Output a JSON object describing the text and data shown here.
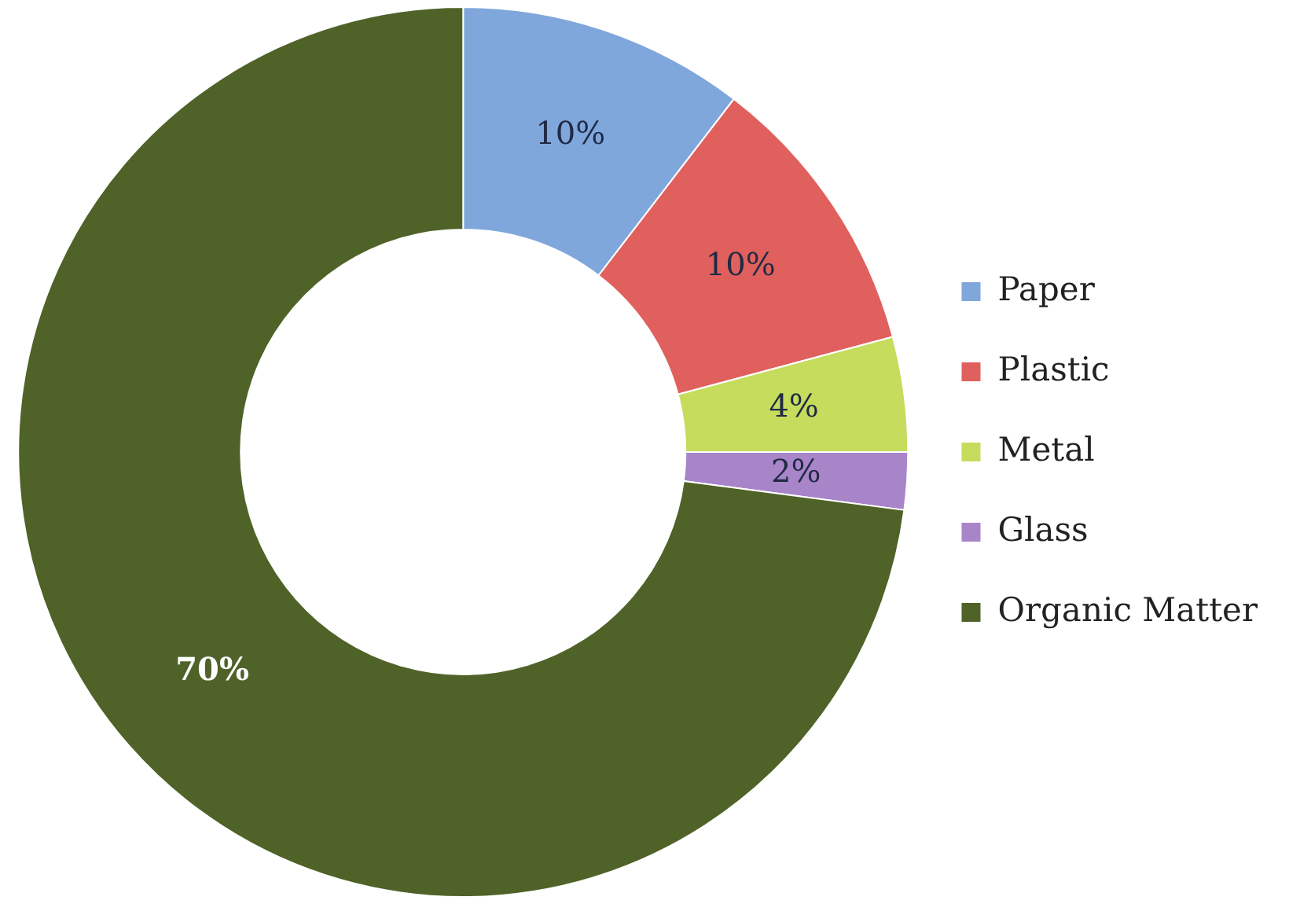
{
  "chart_data": {
    "type": "donut",
    "categories": [
      "Paper",
      "Plastic",
      "Metal",
      "Glass",
      "Organic Matter"
    ],
    "values": [
      10,
      10,
      4,
      2,
      70
    ],
    "value_labels": [
      "10%",
      "10%",
      "4%",
      "2%",
      "70%"
    ],
    "colors": [
      "#7fa7dc",
      "#e0605e",
      "#c5dc5c",
      "#a884c8",
      "#4f6228"
    ],
    "legend": "right"
  }
}
